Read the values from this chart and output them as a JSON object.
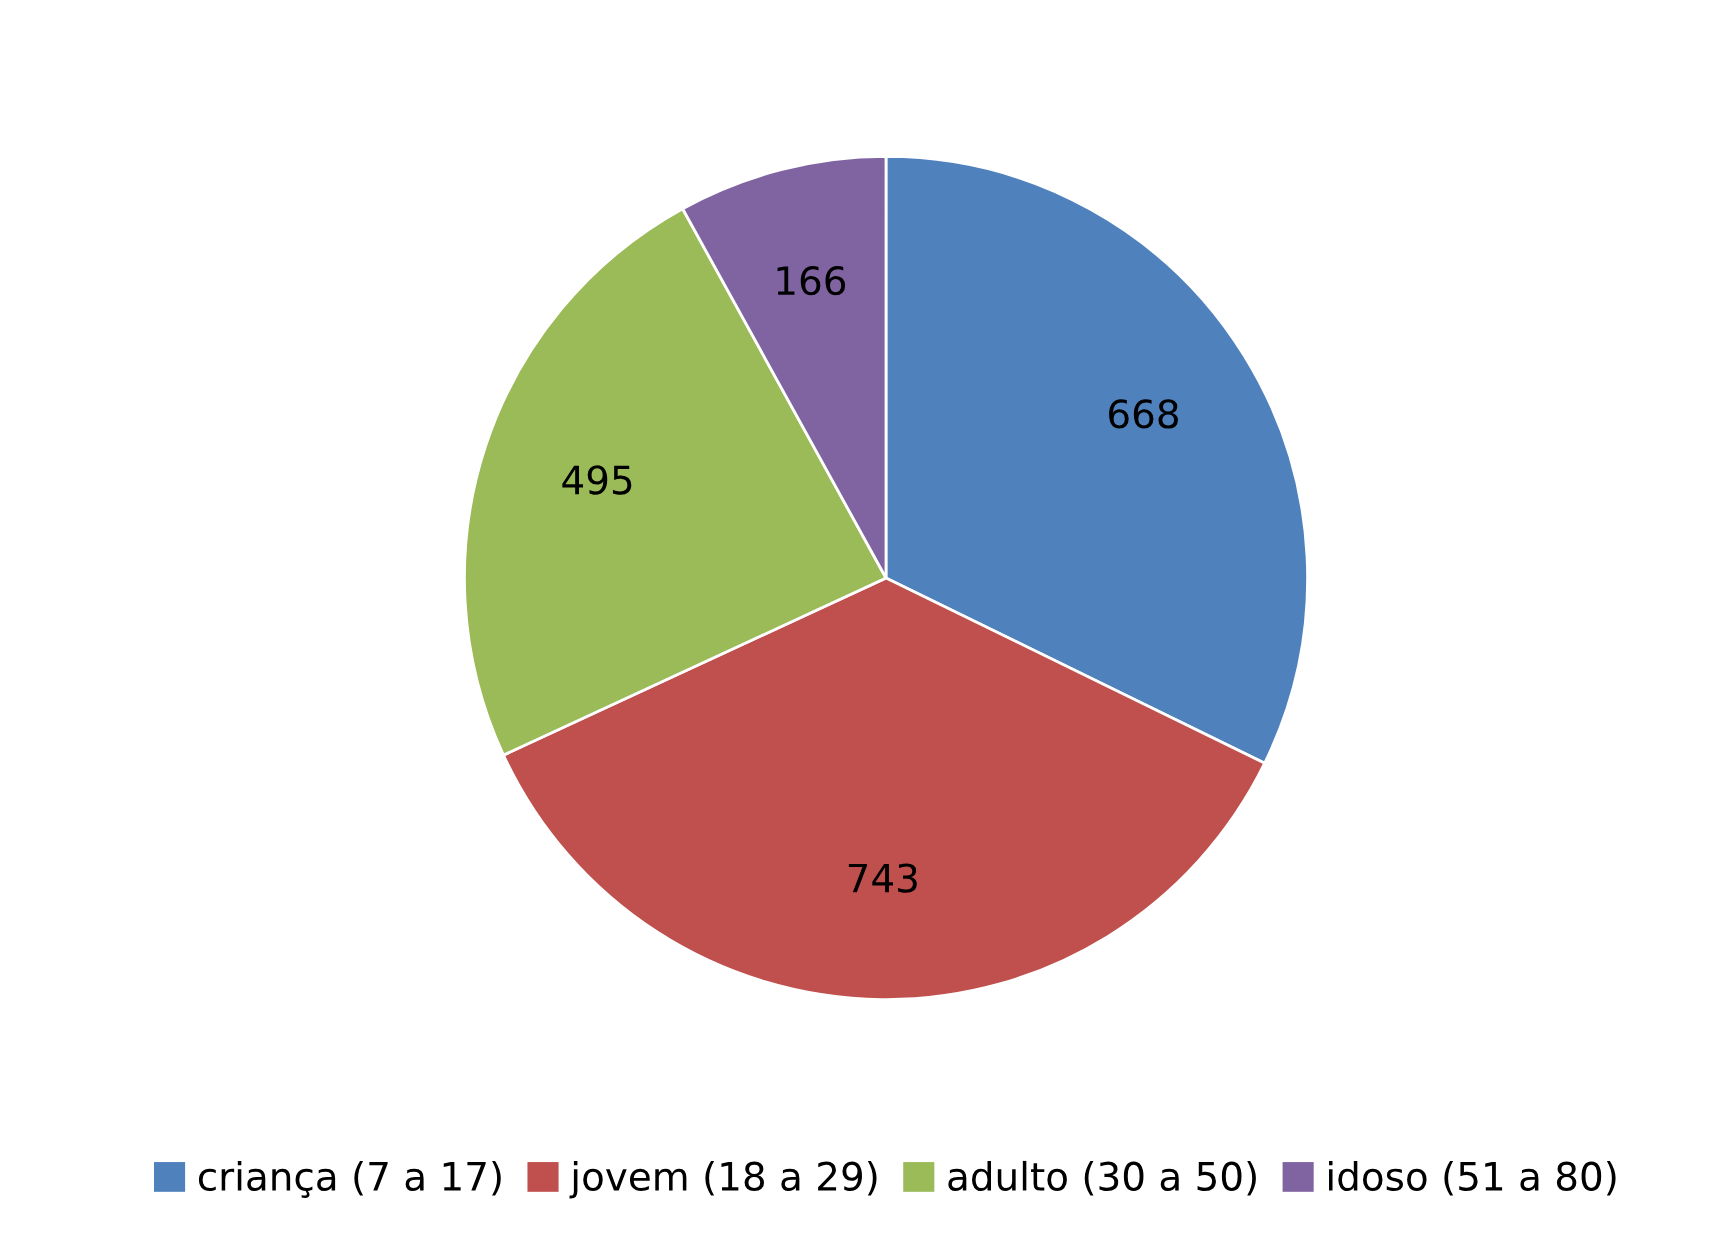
{
  "chart_data": {
    "type": "pie",
    "categories": [
      "criança (7 a 17)",
      "jovem (18 a 29)",
      "adulto (30 a 50)",
      "idoso (51 a 80)"
    ],
    "values": [
      668,
      743,
      495,
      166
    ],
    "colors": [
      "#4f81bd",
      "#c0504d",
      "#9bbb59",
      "#8064a2"
    ],
    "data_labels": true,
    "legend": "bottom"
  }
}
